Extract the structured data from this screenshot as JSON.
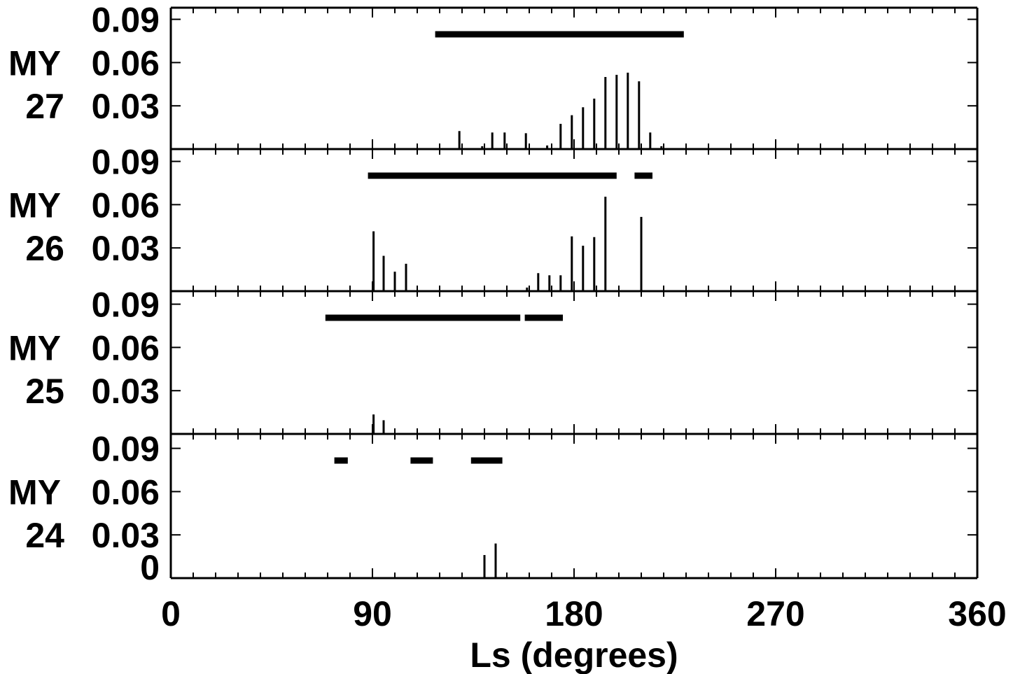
{
  "chart_data": {
    "type": "bar",
    "xlabel": "Ls (degrees)",
    "xlim": [
      0,
      360
    ],
    "xticks": [
      "0",
      "90",
      "180",
      "270",
      "360"
    ],
    "xtick_values": [
      0,
      90,
      180,
      270,
      360
    ],
    "ylim": [
      0,
      0.1
    ],
    "yticks": [
      "0.09",
      "0.06",
      "0.03"
    ],
    "ytick_values": [
      0.09,
      0.06,
      0.03
    ],
    "y_zero_label": "0",
    "grid": false,
    "panels": [
      {
        "label_top": "MY",
        "label_bottom": "27",
        "periods": [
          [
            118.0,
            229.0
          ]
        ],
        "bars": [
          {
            "x": 128.8,
            "y": 0.0125
          },
          {
            "x": 139.0,
            "y": 0.002
          },
          {
            "x": 143.5,
            "y": 0.0115
          },
          {
            "x": 149.0,
            "y": 0.0115
          },
          {
            "x": 158.5,
            "y": 0.011
          },
          {
            "x": 168.0,
            "y": 0.0025
          },
          {
            "x": 174.0,
            "y": 0.0175
          },
          {
            "x": 179.0,
            "y": 0.0235
          },
          {
            "x": 184.0,
            "y": 0.029
          },
          {
            "x": 189.0,
            "y": 0.035
          },
          {
            "x": 194.0,
            "y": 0.05
          },
          {
            "x": 199.0,
            "y": 0.0515
          },
          {
            "x": 204.0,
            "y": 0.053
          },
          {
            "x": 209.0,
            "y": 0.047
          },
          {
            "x": 214.0,
            "y": 0.0115
          },
          {
            "x": 219.0,
            "y": 0.002
          }
        ]
      },
      {
        "label_top": "MY",
        "label_bottom": "26",
        "periods": [
          [
            88.0,
            199.0
          ],
          [
            207.0,
            215.0
          ]
        ],
        "bars": [
          {
            "x": 90.5,
            "y": 0.0415
          },
          {
            "x": 95.0,
            "y": 0.0245
          },
          {
            "x": 100.0,
            "y": 0.0135
          },
          {
            "x": 105.0,
            "y": 0.019
          },
          {
            "x": 159.0,
            "y": 0.0025
          },
          {
            "x": 164.0,
            "y": 0.0125
          },
          {
            "x": 169.0,
            "y": 0.011
          },
          {
            "x": 174.0,
            "y": 0.011
          },
          {
            "x": 179.0,
            "y": 0.038
          },
          {
            "x": 184.0,
            "y": 0.0315
          },
          {
            "x": 189.0,
            "y": 0.0375
          },
          {
            "x": 194.0,
            "y": 0.0655
          },
          {
            "x": 210.0,
            "y": 0.0515
          }
        ]
      },
      {
        "label_top": "MY",
        "label_bottom": "25",
        "periods": [
          [
            69.0,
            156.0
          ],
          [
            158.0,
            175.0
          ]
        ],
        "bars": [
          {
            "x": 90.5,
            "y": 0.0135
          },
          {
            "x": 95.0,
            "y": 0.0095
          }
        ]
      },
      {
        "label_top": "MY",
        "label_bottom": "24",
        "periods": [
          [
            73.0,
            79.0
          ],
          [
            107.0,
            117.0
          ],
          [
            134.0,
            148.0
          ]
        ],
        "bars": [
          {
            "x": 140.0,
            "y": 0.016
          },
          {
            "x": 145.0,
            "y": 0.024
          }
        ]
      }
    ]
  }
}
